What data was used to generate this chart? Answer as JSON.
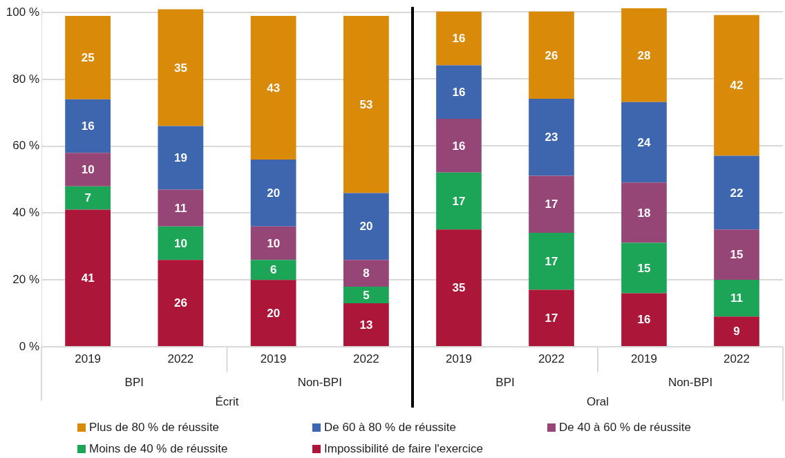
{
  "chart_data": [
    {
      "type": "bar",
      "stacked": true,
      "categories": [
        "2019",
        "2022",
        "2019",
        "2022"
      ],
      "annotations": [
        "BPI",
        "Non-BPI"
      ],
      "xlabel": "Écrit",
      "series": [
        {
          "name": "Impossibilité de faire l'exercice",
          "color": "#ac1739",
          "values": [
            41,
            26,
            20,
            13
          ]
        },
        {
          "name": "Moins de 40 % de réussite",
          "color": "#1ca457",
          "values": [
            7,
            10,
            6,
            5
          ]
        },
        {
          "name": "De 40 à 60 % de réussite",
          "color": "#964676",
          "values": [
            10,
            11,
            10,
            8
          ]
        },
        {
          "name": "De 60 à 80 % de réussite",
          "color": "#3e66af",
          "values": [
            16,
            19,
            20,
            20
          ]
        },
        {
          "name": "Plus de 80 % de réussite",
          "color": "#d98a08",
          "values": [
            25,
            35,
            43,
            53
          ]
        }
      ],
      "ylim": [
        0,
        101
      ],
      "yticks": [
        {
          "value": 0,
          "label": "0 %"
        },
        {
          "value": 20,
          "label": "20 %"
        },
        {
          "value": 40,
          "label": "40 %"
        },
        {
          "value": 60,
          "label": "60 %"
        },
        {
          "value": 80,
          "label": "80 %"
        },
        {
          "value": 100,
          "label": "100 %"
        }
      ],
      "grid": "y",
      "legend": "bottom",
      "data_labels": true
    },
    {
      "type": "bar",
      "stacked": true,
      "categories": [
        "2019",
        "2022",
        "2019",
        "2022"
      ],
      "annotations": [
        "BPI",
        "Non-BPI"
      ],
      "xlabel": "Oral",
      "series": [
        {
          "color": "#ac1739",
          "values": [
            35,
            17,
            16,
            9
          ]
        },
        {
          "color": "#1ca457",
          "values": [
            17,
            17,
            15,
            11
          ]
        },
        {
          "color": "#964676",
          "values": [
            16,
            17,
            18,
            15
          ]
        },
        {
          "color": "#3e66af",
          "values": [
            16,
            23,
            24,
            22
          ]
        },
        {
          "color": "#d98a08",
          "values": [
            16,
            26,
            28,
            42
          ]
        }
      ],
      "ylim": [
        0,
        101
      ],
      "yticks": [
        0,
        20,
        40,
        60,
        80,
        100
      ],
      "tick_labels": "x",
      "grid": "y",
      "data_labels": true
    }
  ]
}
